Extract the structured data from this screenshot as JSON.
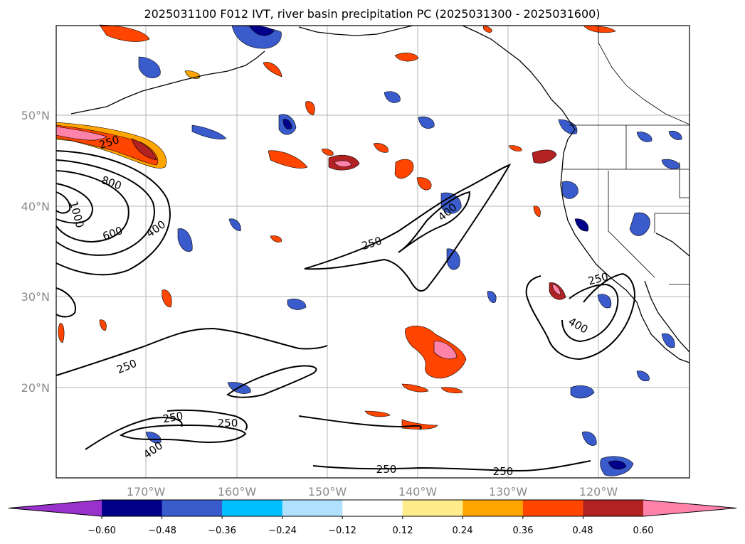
{
  "title": "2025031100 F012 IVT, river basin precipitation PC (2025031300 - 2025031600)",
  "map": {
    "lon_ticks": [
      "170°W",
      "160°W",
      "150°W",
      "140°W",
      "130°W",
      "120°W"
    ],
    "lat_ticks": [
      "50°N",
      "40°N",
      "30°N",
      "20°N"
    ],
    "contour_labels": [
      "250",
      "800",
      "1000",
      "600",
      "400",
      "250",
      "400",
      "250",
      "400",
      "250",
      "250",
      "250",
      "400",
      "250",
      "250"
    ]
  },
  "colorbar": {
    "ticks": [
      "−0.60",
      "−0.48",
      "−0.36",
      "−0.24",
      "−0.12",
      "0.12",
      "0.24",
      "0.36",
      "0.48",
      "0.60"
    ],
    "colors": [
      "#9932cc",
      "#00008b",
      "#3a5bcc",
      "#00bfff",
      "#b0e2ff",
      "#ffffff",
      "#ffec8b",
      "#ffa500",
      "#ff4500",
      "#b22222",
      "#ff82ab"
    ]
  }
}
